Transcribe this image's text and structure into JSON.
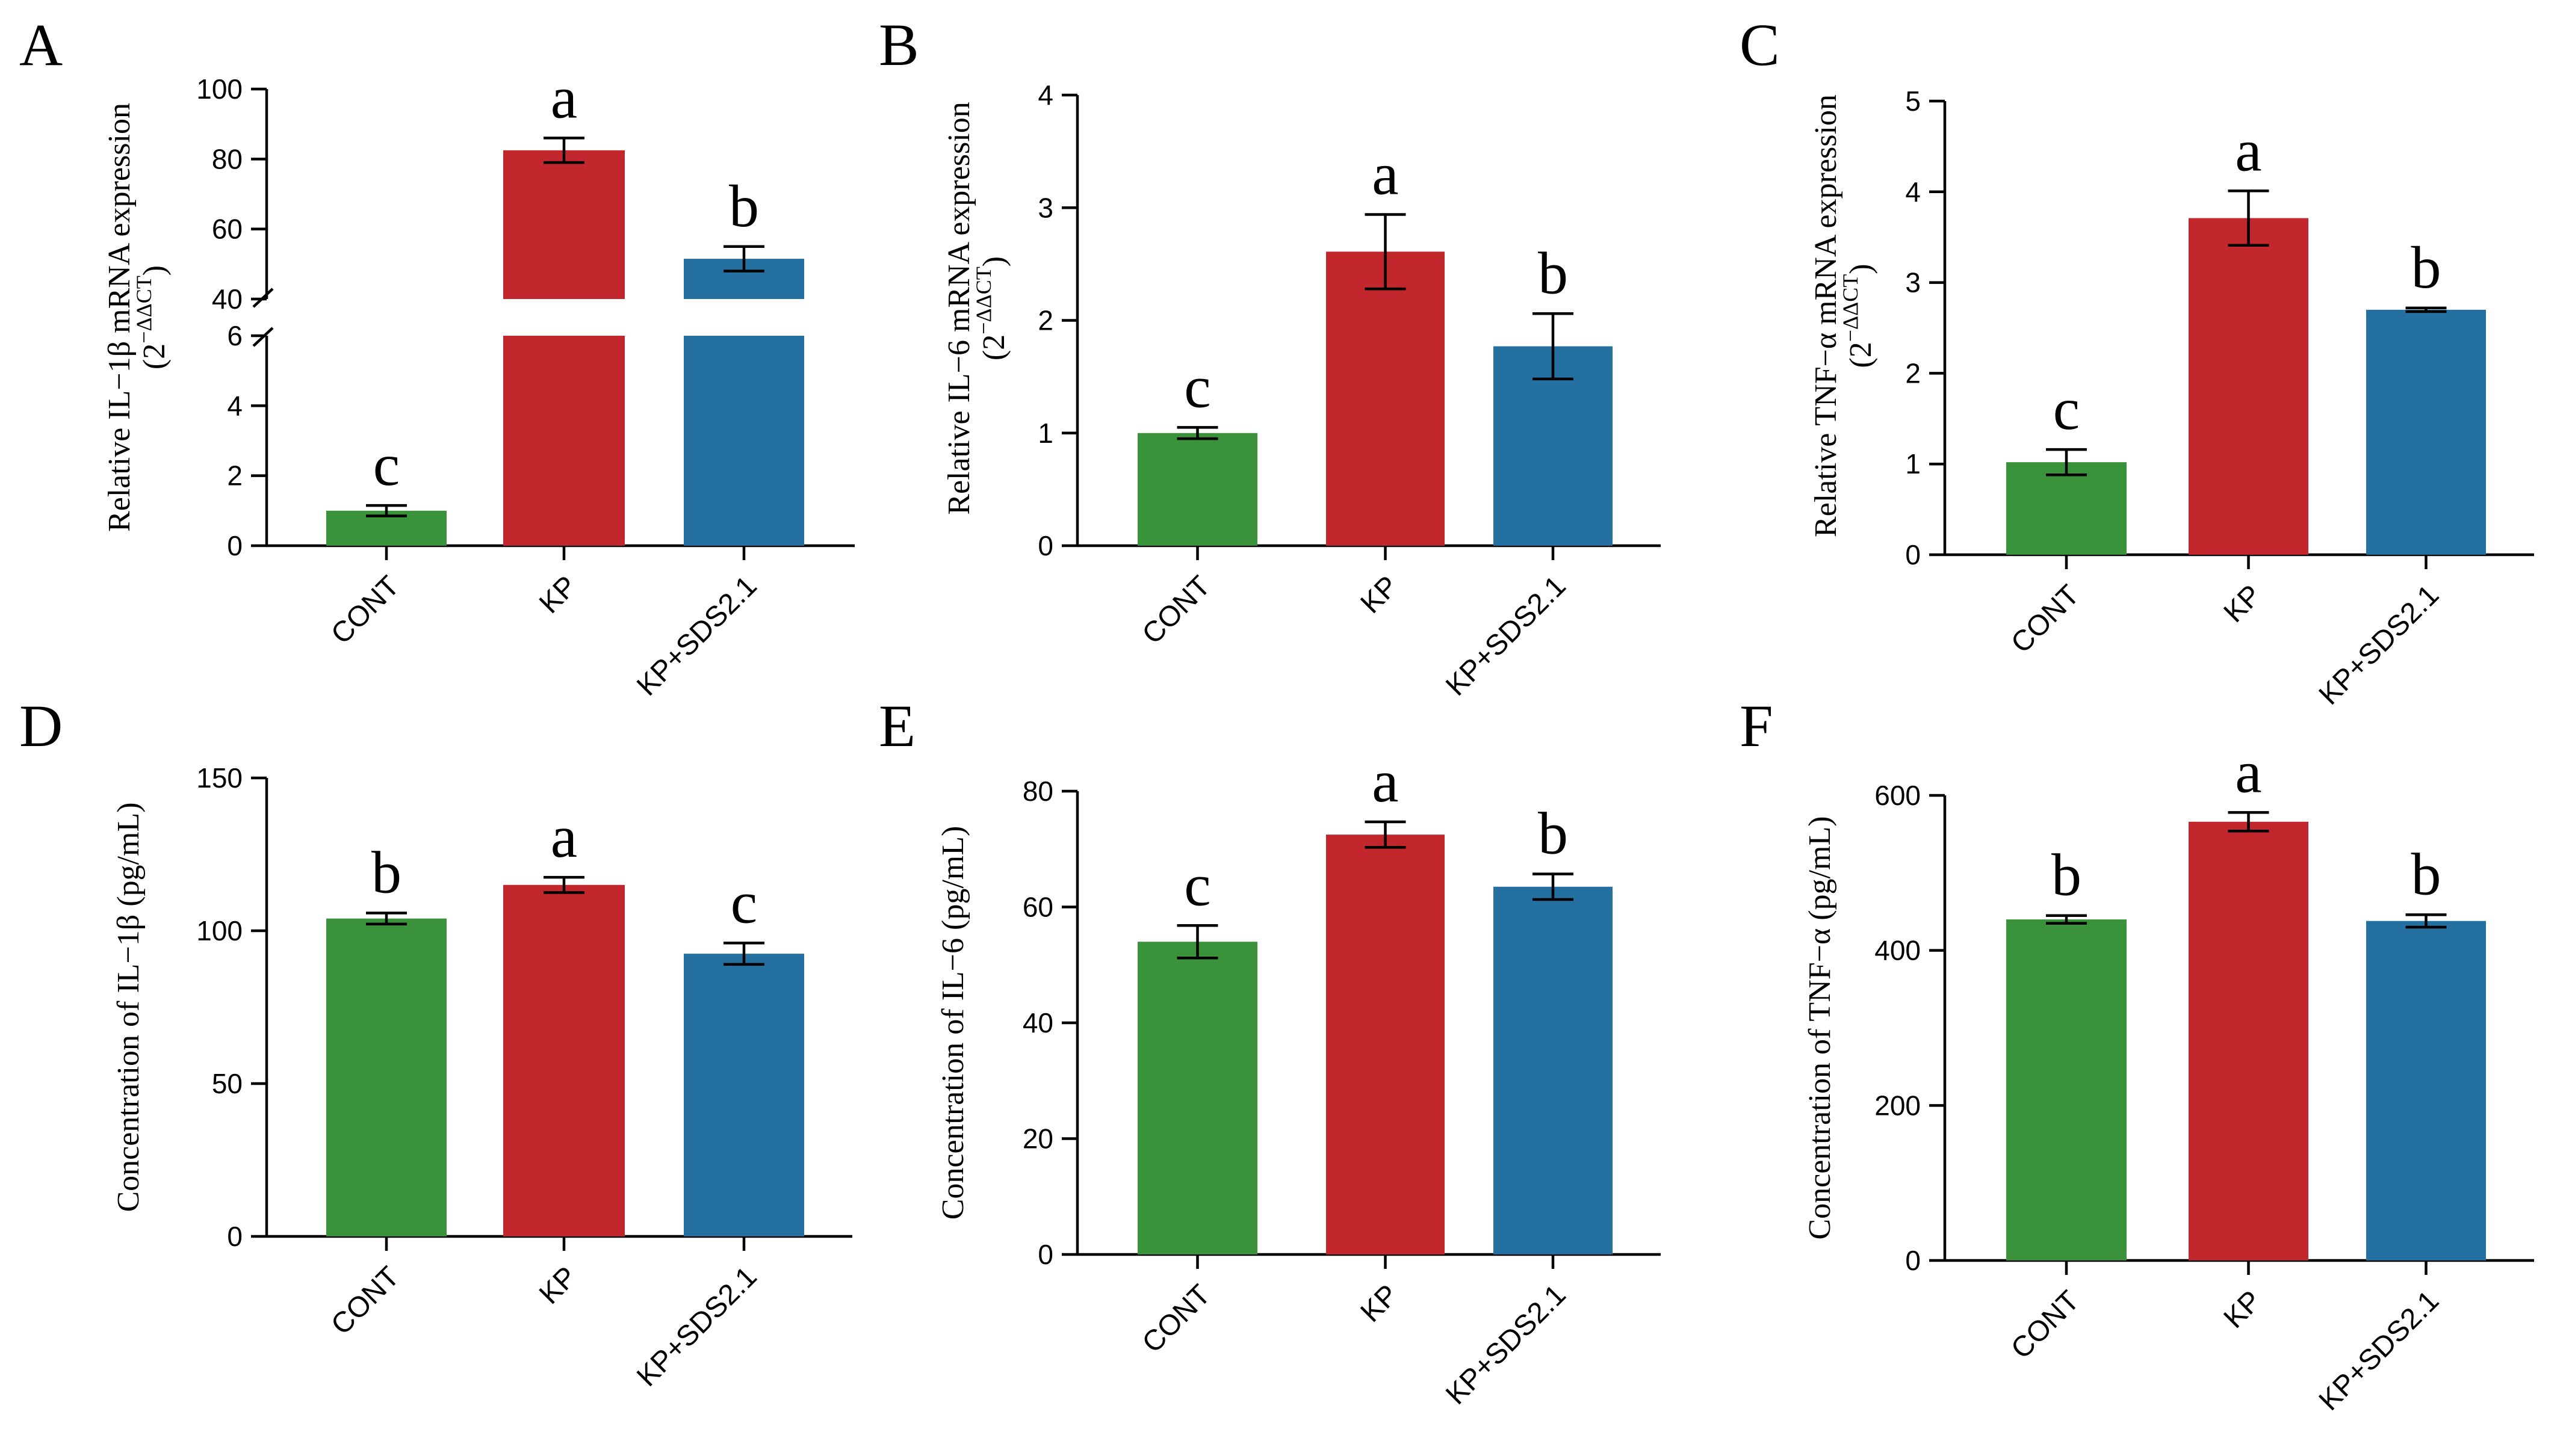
{
  "figure": {
    "panel_count": 6
  },
  "colors": {
    "CONT": "#3a933a",
    "KP": "#c1272d",
    "KP+SDS2.1": "#2470a0"
  },
  "chart_data": [
    {
      "panel": "A",
      "type": "bar",
      "title": "",
      "ylabel_main": "Relative IL−1β mRNA expression",
      "ylabel_sub_base": "(2",
      "ylabel_sub_sup": "−ΔΔCT",
      "ylabel_sub_close": ")",
      "categories": [
        "CONT",
        "KP",
        "KP+SDS2.1"
      ],
      "values": [
        1.0,
        82.5,
        51.5
      ],
      "errors": [
        0.15,
        3.5,
        3.5
      ],
      "letters": [
        "c",
        "a",
        "b"
      ],
      "axis_break": true,
      "lower_range": [
        0,
        6
      ],
      "lower_ticks": [
        0,
        2,
        4,
        6
      ],
      "upper_range": [
        40,
        100
      ],
      "upper_ticks": [
        40,
        60,
        80,
        100
      ]
    },
    {
      "panel": "B",
      "type": "bar",
      "title": "",
      "ylabel_main": "Relative IL−6 mRNA expression",
      "ylabel_sub_base": "(2",
      "ylabel_sub_sup": "−ΔΔCT",
      "ylabel_sub_close": ")",
      "categories": [
        "CONT",
        "KP",
        "KP+SDS2.1"
      ],
      "values": [
        1.0,
        2.61,
        1.77
      ],
      "errors": [
        0.05,
        0.33,
        0.29
      ],
      "letters": [
        "c",
        "a",
        "b"
      ],
      "ylim": [
        0,
        4
      ],
      "ticks": [
        0,
        1,
        2,
        3,
        4
      ]
    },
    {
      "panel": "C",
      "type": "bar",
      "title": "",
      "ylabel_main": "Relative TNF−α mRNA expression",
      "ylabel_sub_base": "(2",
      "ylabel_sub_sup": "−ΔΔCT",
      "ylabel_sub_close": ")",
      "categories": [
        "CONT",
        "KP",
        "KP+SDS2.1"
      ],
      "values": [
        1.02,
        3.71,
        2.7
      ],
      "errors": [
        0.14,
        0.3,
        0.02
      ],
      "letters": [
        "c",
        "a",
        "b"
      ],
      "ylim": [
        0,
        5
      ],
      "ticks": [
        0,
        1,
        2,
        3,
        4,
        5
      ]
    },
    {
      "panel": "D",
      "type": "bar",
      "title": "",
      "ylabel_main": "Concentration of IL−1β (pg/mL)",
      "categories": [
        "CONT",
        "KP",
        "KP+SDS2.1"
      ],
      "values": [
        104,
        115,
        92.5
      ],
      "errors": [
        1.8,
        2.5,
        3.5
      ],
      "letters": [
        "b",
        "a",
        "c"
      ],
      "ylim": [
        0,
        150
      ],
      "ticks": [
        0,
        50,
        100,
        150
      ]
    },
    {
      "panel": "E",
      "type": "bar",
      "title": "",
      "ylabel_main": "Concentration of IL−6 (pg/mL)",
      "categories": [
        "CONT",
        "KP",
        "KP+SDS2.1"
      ],
      "values": [
        54,
        72.5,
        63.5
      ],
      "errors": [
        2.8,
        2.2,
        2.2
      ],
      "letters": [
        "c",
        "a",
        "b"
      ],
      "ylim": [
        0,
        80
      ],
      "ticks": [
        0,
        20,
        40,
        60,
        80
      ]
    },
    {
      "panel": "F",
      "type": "bar",
      "title": "",
      "ylabel_main": "Concentration of TNF−α (pg/mL)",
      "categories": [
        "CONT",
        "KP",
        "KP+SDS2.1"
      ],
      "values": [
        440,
        566,
        438
      ],
      "errors": [
        5,
        12,
        8
      ],
      "letters": [
        "b",
        "a",
        "b"
      ],
      "ylim": [
        0,
        600
      ],
      "ticks": [
        0,
        200,
        400,
        600
      ]
    }
  ]
}
